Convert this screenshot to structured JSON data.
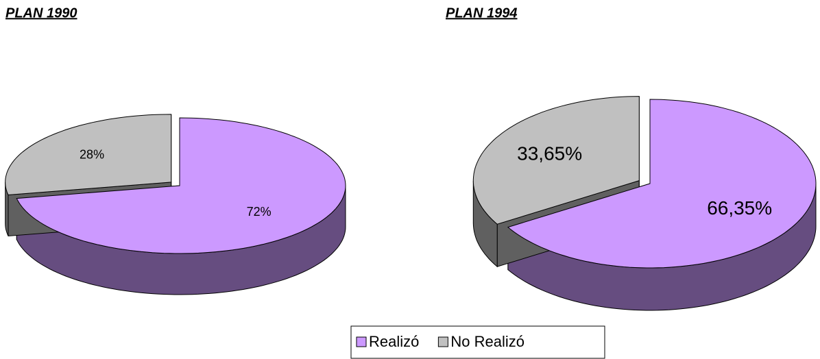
{
  "chart_data": [
    {
      "type": "pie",
      "title": "PLAN 1990",
      "categories": [
        "Realizó",
        "No Realizó"
      ],
      "values": [
        72,
        28
      ],
      "value_labels": [
        "72%",
        "28%"
      ],
      "colors": [
        "#cc99ff",
        "#c0c0c0"
      ]
    },
    {
      "type": "pie",
      "title": "PLAN 1994",
      "categories": [
        "Realizó",
        "No Realizó"
      ],
      "values": [
        66.35,
        33.65
      ],
      "value_labels": [
        "66,35%",
        "33,65%"
      ],
      "colors": [
        "#cc99ff",
        "#c0c0c0"
      ]
    }
  ]
}
